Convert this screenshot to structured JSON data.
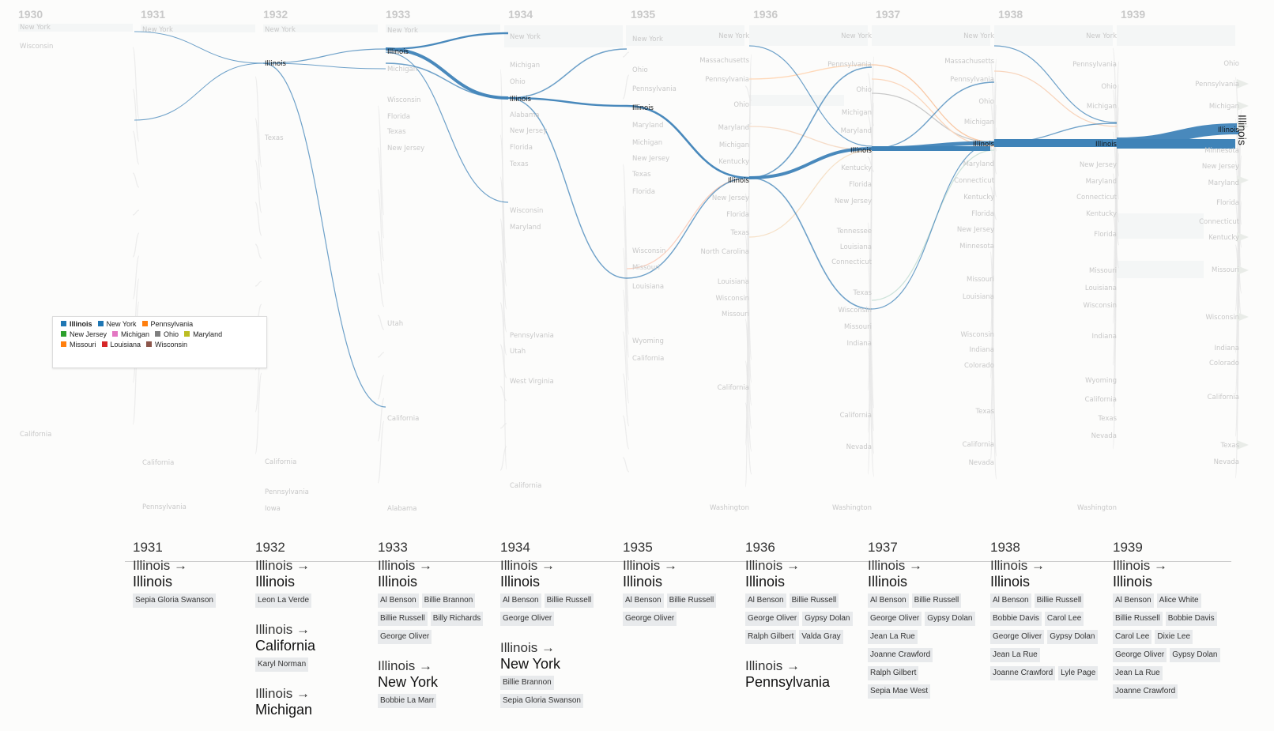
{
  "years": [
    "1930",
    "1931",
    "1932",
    "1933",
    "1934",
    "1935",
    "1936",
    "1937",
    "1938",
    "1939"
  ],
  "focus_state": "Illinois",
  "legend": [
    {
      "label": "Illinois",
      "color": "#1f77b4",
      "bold": true
    },
    {
      "label": "New York",
      "color": "#1f77b4"
    },
    {
      "label": "Pennsylvania",
      "color": "#ff7f0e"
    },
    {
      "label": "New Jersey",
      "color": "#2ca02c"
    },
    {
      "label": "Michigan",
      "color": "#e377c2"
    },
    {
      "label": "Ohio",
      "color": "#7f7f7f"
    },
    {
      "label": "Maryland",
      "color": "#bcbd22"
    },
    {
      "label": "Missouri",
      "color": "#ff7f0e"
    },
    {
      "label": "Louisiana",
      "color": "#d62728"
    },
    {
      "label": "Wisconsin",
      "color": "#8c564b"
    }
  ],
  "node_labels": [
    {
      "col": 0,
      "label": "New York",
      "y": 34
    },
    {
      "col": 0,
      "label": "Wisconsin",
      "y": 58
    },
    {
      "col": 0,
      "label": "California",
      "y": 549
    },
    {
      "col": 1,
      "label": "New York",
      "y": 37
    },
    {
      "col": 1,
      "label": "California",
      "y": 585
    },
    {
      "col": 1,
      "label": "Pennsylvania",
      "y": 641
    },
    {
      "col": 2,
      "label": "New York",
      "y": 37
    },
    {
      "col": 2,
      "label": "Illinois",
      "y": 80,
      "hi": true
    },
    {
      "col": 2,
      "label": "Texas",
      "y": 174
    },
    {
      "col": 2,
      "label": "California",
      "y": 584
    },
    {
      "col": 2,
      "label": "Pennsylvania",
      "y": 622
    },
    {
      "col": 2,
      "label": "Iowa",
      "y": 643
    },
    {
      "col": 3,
      "label": "New York",
      "y": 38
    },
    {
      "col": 3,
      "label": "Illinois",
      "y": 65,
      "hi": true
    },
    {
      "col": 3,
      "label": "Michigan",
      "y": 87
    },
    {
      "col": 3,
      "label": "Wisconsin",
      "y": 126
    },
    {
      "col": 3,
      "label": "Florida",
      "y": 147
    },
    {
      "col": 3,
      "label": "Texas",
      "y": 166
    },
    {
      "col": 3,
      "label": "New Jersey",
      "y": 187
    },
    {
      "col": 3,
      "label": "Utah",
      "y": 409
    },
    {
      "col": 3,
      "label": "California",
      "y": 529
    },
    {
      "col": 3,
      "label": "Alabama",
      "y": 643
    },
    {
      "col": 4,
      "label": "New York",
      "y": 46
    },
    {
      "col": 4,
      "label": "Michigan",
      "y": 82
    },
    {
      "col": 4,
      "label": "Ohio",
      "y": 103
    },
    {
      "col": 4,
      "label": "Illinois",
      "y": 125,
      "hi": true
    },
    {
      "col": 4,
      "label": "Alabama",
      "y": 145
    },
    {
      "col": 4,
      "label": "New Jersey",
      "y": 165
    },
    {
      "col": 4,
      "label": "Florida",
      "y": 186
    },
    {
      "col": 4,
      "label": "Texas",
      "y": 207
    },
    {
      "col": 4,
      "label": "Wisconsin",
      "y": 266
    },
    {
      "col": 4,
      "label": "Maryland",
      "y": 287
    },
    {
      "col": 4,
      "label": "Pennsylvania",
      "y": 424
    },
    {
      "col": 4,
      "label": "Utah",
      "y": 444
    },
    {
      "col": 4,
      "label": "West Virginia",
      "y": 482
    },
    {
      "col": 4,
      "label": "California",
      "y": 614
    },
    {
      "col": 5,
      "label": "New York",
      "y": 49
    },
    {
      "col": 5,
      "label": "Ohio",
      "y": 88
    },
    {
      "col": 5,
      "label": "Pennsylvania",
      "y": 112
    },
    {
      "col": 5,
      "label": "Illinois",
      "y": 136,
      "hi": true
    },
    {
      "col": 5,
      "label": "Maryland",
      "y": 158
    },
    {
      "col": 5,
      "label": "Michigan",
      "y": 180
    },
    {
      "col": 5,
      "label": "New Jersey",
      "y": 200
    },
    {
      "col": 5,
      "label": "Texas",
      "y": 220
    },
    {
      "col": 5,
      "label": "Florida",
      "y": 242
    },
    {
      "col": 5,
      "label": "Wisconsin",
      "y": 317
    },
    {
      "col": 5,
      "label": "Missouri",
      "y": 338
    },
    {
      "col": 5,
      "label": "Louisiana",
      "y": 362
    },
    {
      "col": 5,
      "label": "Wyoming",
      "y": 431
    },
    {
      "col": 5,
      "label": "California",
      "y": 453
    },
    {
      "col": 6,
      "label": "New York",
      "y": 45,
      "right": true
    },
    {
      "col": 6,
      "label": "Massachusetts",
      "y": 76,
      "right": true
    },
    {
      "col": 6,
      "label": "Pennsylvania",
      "y": 100,
      "right": true
    },
    {
      "col": 6,
      "label": "Ohio",
      "y": 132,
      "right": true
    },
    {
      "col": 6,
      "label": "Maryland",
      "y": 161,
      "right": true
    },
    {
      "col": 6,
      "label": "Michigan",
      "y": 183,
      "right": true
    },
    {
      "col": 6,
      "label": "Kentucky",
      "y": 204,
      "right": true
    },
    {
      "col": 6,
      "label": "Illinois",
      "y": 228,
      "right": true,
      "hi": true
    },
    {
      "col": 6,
      "label": "New Jersey",
      "y": 250,
      "right": true
    },
    {
      "col": 6,
      "label": "Florida",
      "y": 271,
      "right": true
    },
    {
      "col": 6,
      "label": "Texas",
      "y": 294,
      "right": true
    },
    {
      "col": 6,
      "label": "North Carolina",
      "y": 318,
      "right": true
    },
    {
      "col": 6,
      "label": "Louisiana",
      "y": 356,
      "right": true
    },
    {
      "col": 6,
      "label": "Wisconsin",
      "y": 377,
      "right": true
    },
    {
      "col": 6,
      "label": "Missouri",
      "y": 397,
      "right": true
    },
    {
      "col": 6,
      "label": "California",
      "y": 490,
      "right": true
    },
    {
      "col": 6,
      "label": "Washington",
      "y": 642,
      "right": true
    },
    {
      "col": 7,
      "label": "New York",
      "y": 45,
      "right": true
    },
    {
      "col": 7,
      "label": "Pennsylvania",
      "y": 81,
      "right": true
    },
    {
      "col": 7,
      "label": "Ohio",
      "y": 113,
      "right": true
    },
    {
      "col": 7,
      "label": "Michigan",
      "y": 142,
      "right": true
    },
    {
      "col": 7,
      "label": "Maryland",
      "y": 165,
      "right": true
    },
    {
      "col": 7,
      "label": "Illinois",
      "y": 190,
      "right": true,
      "hi": true
    },
    {
      "col": 7,
      "label": "Kentucky",
      "y": 212,
      "right": true
    },
    {
      "col": 7,
      "label": "Florida",
      "y": 233,
      "right": true
    },
    {
      "col": 7,
      "label": "New Jersey",
      "y": 254,
      "right": true
    },
    {
      "col": 7,
      "label": "Tennessee",
      "y": 292,
      "right": true
    },
    {
      "col": 7,
      "label": "Louisiana",
      "y": 312,
      "right": true
    },
    {
      "col": 7,
      "label": "Connecticut",
      "y": 331,
      "right": true
    },
    {
      "col": 7,
      "label": "Texas",
      "y": 370,
      "right": true
    },
    {
      "col": 7,
      "label": "Wisconsin",
      "y": 392,
      "right": true
    },
    {
      "col": 7,
      "label": "Missouri",
      "y": 413,
      "right": true
    },
    {
      "col": 7,
      "label": "Indiana",
      "y": 434,
      "right": true
    },
    {
      "col": 7,
      "label": "California",
      "y": 525,
      "right": true
    },
    {
      "col": 7,
      "label": "Nevada",
      "y": 565,
      "right": true
    },
    {
      "col": 7,
      "label": "Washington",
      "y": 642,
      "right": true
    },
    {
      "col": 8,
      "label": "New York",
      "y": 45,
      "right": true
    },
    {
      "col": 8,
      "label": "Massachusetts",
      "y": 77,
      "right": true
    },
    {
      "col": 8,
      "label": "Pennsylvania",
      "y": 100,
      "right": true
    },
    {
      "col": 8,
      "label": "Ohio",
      "y": 128,
      "right": true
    },
    {
      "col": 8,
      "label": "Michigan",
      "y": 154,
      "right": true
    },
    {
      "col": 8,
      "label": "Illinois",
      "y": 182,
      "right": true,
      "hi": true
    },
    {
      "col": 8,
      "label": "Maryland",
      "y": 207,
      "right": true
    },
    {
      "col": 8,
      "label": "Connecticut",
      "y": 228,
      "right": true
    },
    {
      "col": 8,
      "label": "Kentucky",
      "y": 249,
      "right": true
    },
    {
      "col": 8,
      "label": "Florida",
      "y": 270,
      "right": true
    },
    {
      "col": 8,
      "label": "New Jersey",
      "y": 290,
      "right": true
    },
    {
      "col": 8,
      "label": "Minnesota",
      "y": 311,
      "right": true
    },
    {
      "col": 8,
      "label": "Missouri",
      "y": 353,
      "right": true
    },
    {
      "col": 8,
      "label": "Louisiana",
      "y": 375,
      "right": true
    },
    {
      "col": 8,
      "label": "Wisconsin",
      "y": 423,
      "right": true
    },
    {
      "col": 8,
      "label": "Indiana",
      "y": 442,
      "right": true
    },
    {
      "col": 8,
      "label": "Colorado",
      "y": 462,
      "right": true
    },
    {
      "col": 8,
      "label": "Texas",
      "y": 520,
      "right": true
    },
    {
      "col": 8,
      "label": "California",
      "y": 562,
      "right": true
    },
    {
      "col": 8,
      "label": "Nevada",
      "y": 585,
      "right": true
    },
    {
      "col": 9,
      "label": "New York",
      "y": 45,
      "right": true
    },
    {
      "col": 9,
      "label": "Pennsylvania",
      "y": 81,
      "right": true
    },
    {
      "col": 9,
      "label": "Ohio",
      "y": 109,
      "right": true
    },
    {
      "col": 9,
      "label": "Michigan",
      "y": 134,
      "right": true
    },
    {
      "col": 9,
      "label": "Illinois",
      "y": 182,
      "right": true,
      "hi": true
    },
    {
      "col": 9,
      "label": "New Jersey",
      "y": 208,
      "right": true
    },
    {
      "col": 9,
      "label": "Maryland",
      "y": 229,
      "right": true
    },
    {
      "col": 9,
      "label": "Connecticut",
      "y": 249,
      "right": true
    },
    {
      "col": 9,
      "label": "Kentucky",
      "y": 270,
      "right": true
    },
    {
      "col": 9,
      "label": "Florida",
      "y": 296,
      "right": true
    },
    {
      "col": 9,
      "label": "Missouri",
      "y": 342,
      "right": true
    },
    {
      "col": 9,
      "label": "Louisiana",
      "y": 364,
      "right": true
    },
    {
      "col": 9,
      "label": "Wisconsin",
      "y": 386,
      "right": true
    },
    {
      "col": 9,
      "label": "Indiana",
      "y": 425,
      "right": true
    },
    {
      "col": 9,
      "label": "Wyoming",
      "y": 481,
      "right": true
    },
    {
      "col": 9,
      "label": "California",
      "y": 505,
      "right": true
    },
    {
      "col": 9,
      "label": "Texas",
      "y": 529,
      "right": true
    },
    {
      "col": 9,
      "label": "Nevada",
      "y": 551,
      "right": true
    },
    {
      "col": 9,
      "label": "Washington",
      "y": 642,
      "right": true
    },
    {
      "col": 10,
      "label": "Ohio",
      "y": 80,
      "right": true
    },
    {
      "col": 10,
      "label": "Pennsylvania",
      "y": 106,
      "right": true
    },
    {
      "col": 10,
      "label": "Michigan",
      "y": 134,
      "right": true
    },
    {
      "col": 10,
      "label": "Illinois",
      "y": 164,
      "right": true,
      "hi": true
    },
    {
      "col": 10,
      "label": "Minnesota",
      "y": 190,
      "right": true
    },
    {
      "col": 10,
      "label": "New Jersey",
      "y": 210,
      "right": true
    },
    {
      "col": 10,
      "label": "Maryland",
      "y": 231,
      "right": true
    },
    {
      "col": 10,
      "label": "Florida",
      "y": 256,
      "right": true
    },
    {
      "col": 10,
      "label": "Connecticut",
      "y": 280,
      "right": true
    },
    {
      "col": 10,
      "label": "Kentucky",
      "y": 300,
      "right": true
    },
    {
      "col": 10,
      "label": "Missouri",
      "y": 341,
      "right": true
    },
    {
      "col": 10,
      "label": "Wisconsin",
      "y": 401,
      "right": true
    },
    {
      "col": 10,
      "label": "Indiana",
      "y": 440,
      "right": true
    },
    {
      "col": 10,
      "label": "Colorado",
      "y": 459,
      "right": true
    },
    {
      "col": 10,
      "label": "California",
      "y": 502,
      "right": true
    },
    {
      "col": 10,
      "label": "Texas",
      "y": 563,
      "right": true
    },
    {
      "col": 10,
      "label": "Nevada",
      "y": 584,
      "right": true
    }
  ],
  "panel": [
    {
      "year": "1931",
      "transitions": [
        {
          "from": "Illinois →",
          "to": "Illinois",
          "people": [
            "Sepia Gloria Swanson"
          ]
        }
      ]
    },
    {
      "year": "1932",
      "transitions": [
        {
          "from": "Illinois →",
          "to": "Illinois",
          "people": [
            "Leon La Verde"
          ]
        },
        {
          "from": "Illinois →",
          "to": "California",
          "people": [
            "Karyl Norman"
          ]
        },
        {
          "from": "Illinois →",
          "to": "Michigan",
          "people": []
        }
      ]
    },
    {
      "year": "1933",
      "transitions": [
        {
          "from": "Illinois →",
          "to": "Illinois",
          "people": [
            "Al Benson",
            "Billie Brannon",
            "Billie Russell",
            "Billy Richards",
            "George Oliver"
          ]
        },
        {
          "from": "Illinois →",
          "to": "New York",
          "people": [
            "Bobbie La Marr"
          ]
        }
      ]
    },
    {
      "year": "1934",
      "transitions": [
        {
          "from": "Illinois →",
          "to": "Illinois",
          "people": [
            "Al Benson",
            "Billie Russell",
            "George Oliver"
          ]
        },
        {
          "from": "Illinois →",
          "to": "New York",
          "people": [
            "Billie Brannon",
            "Sepia Gloria Swanson"
          ]
        }
      ]
    },
    {
      "year": "1935",
      "transitions": [
        {
          "from": "Illinois →",
          "to": "Illinois",
          "people": [
            "Al Benson",
            "Billie Russell",
            "George Oliver"
          ]
        }
      ]
    },
    {
      "year": "1936",
      "transitions": [
        {
          "from": "Illinois →",
          "to": "Illinois",
          "people": [
            "Al Benson",
            "Billie Russell",
            "George Oliver",
            "Gypsy Dolan",
            "Ralph Gilbert",
            "Valda Gray"
          ]
        },
        {
          "from": "Illinois →",
          "to": "Pennsylvania",
          "people": []
        }
      ]
    },
    {
      "year": "1937",
      "transitions": [
        {
          "from": "Illinois →",
          "to": "Illinois",
          "people": [
            "Al Benson",
            "Billie Russell",
            "George Oliver",
            "Gypsy Dolan",
            "Jean La Rue",
            "Joanne Crawford",
            "Ralph Gilbert",
            "Sepia Mae West"
          ]
        }
      ]
    },
    {
      "year": "1938",
      "transitions": [
        {
          "from": "Illinois →",
          "to": "Illinois",
          "people": [
            "Al Benson",
            "Billie Russell",
            "Bobbie Davis",
            "Carol Lee",
            "George Oliver",
            "Gypsy Dolan",
            "Jean La Rue",
            "Joanne Crawford",
            "Lyle Page"
          ]
        }
      ]
    },
    {
      "year": "1939",
      "transitions": [
        {
          "from": "Illinois →",
          "to": "Illinois",
          "people": [
            "Al Benson",
            "Alice White",
            "Billie Russell",
            "Bobbie Davis",
            "Carol Lee",
            "Dixie Lee",
            "George Oliver",
            "Gypsy Dolan",
            "Jean La Rue",
            "Joanne Crawford"
          ]
        }
      ]
    }
  ]
}
